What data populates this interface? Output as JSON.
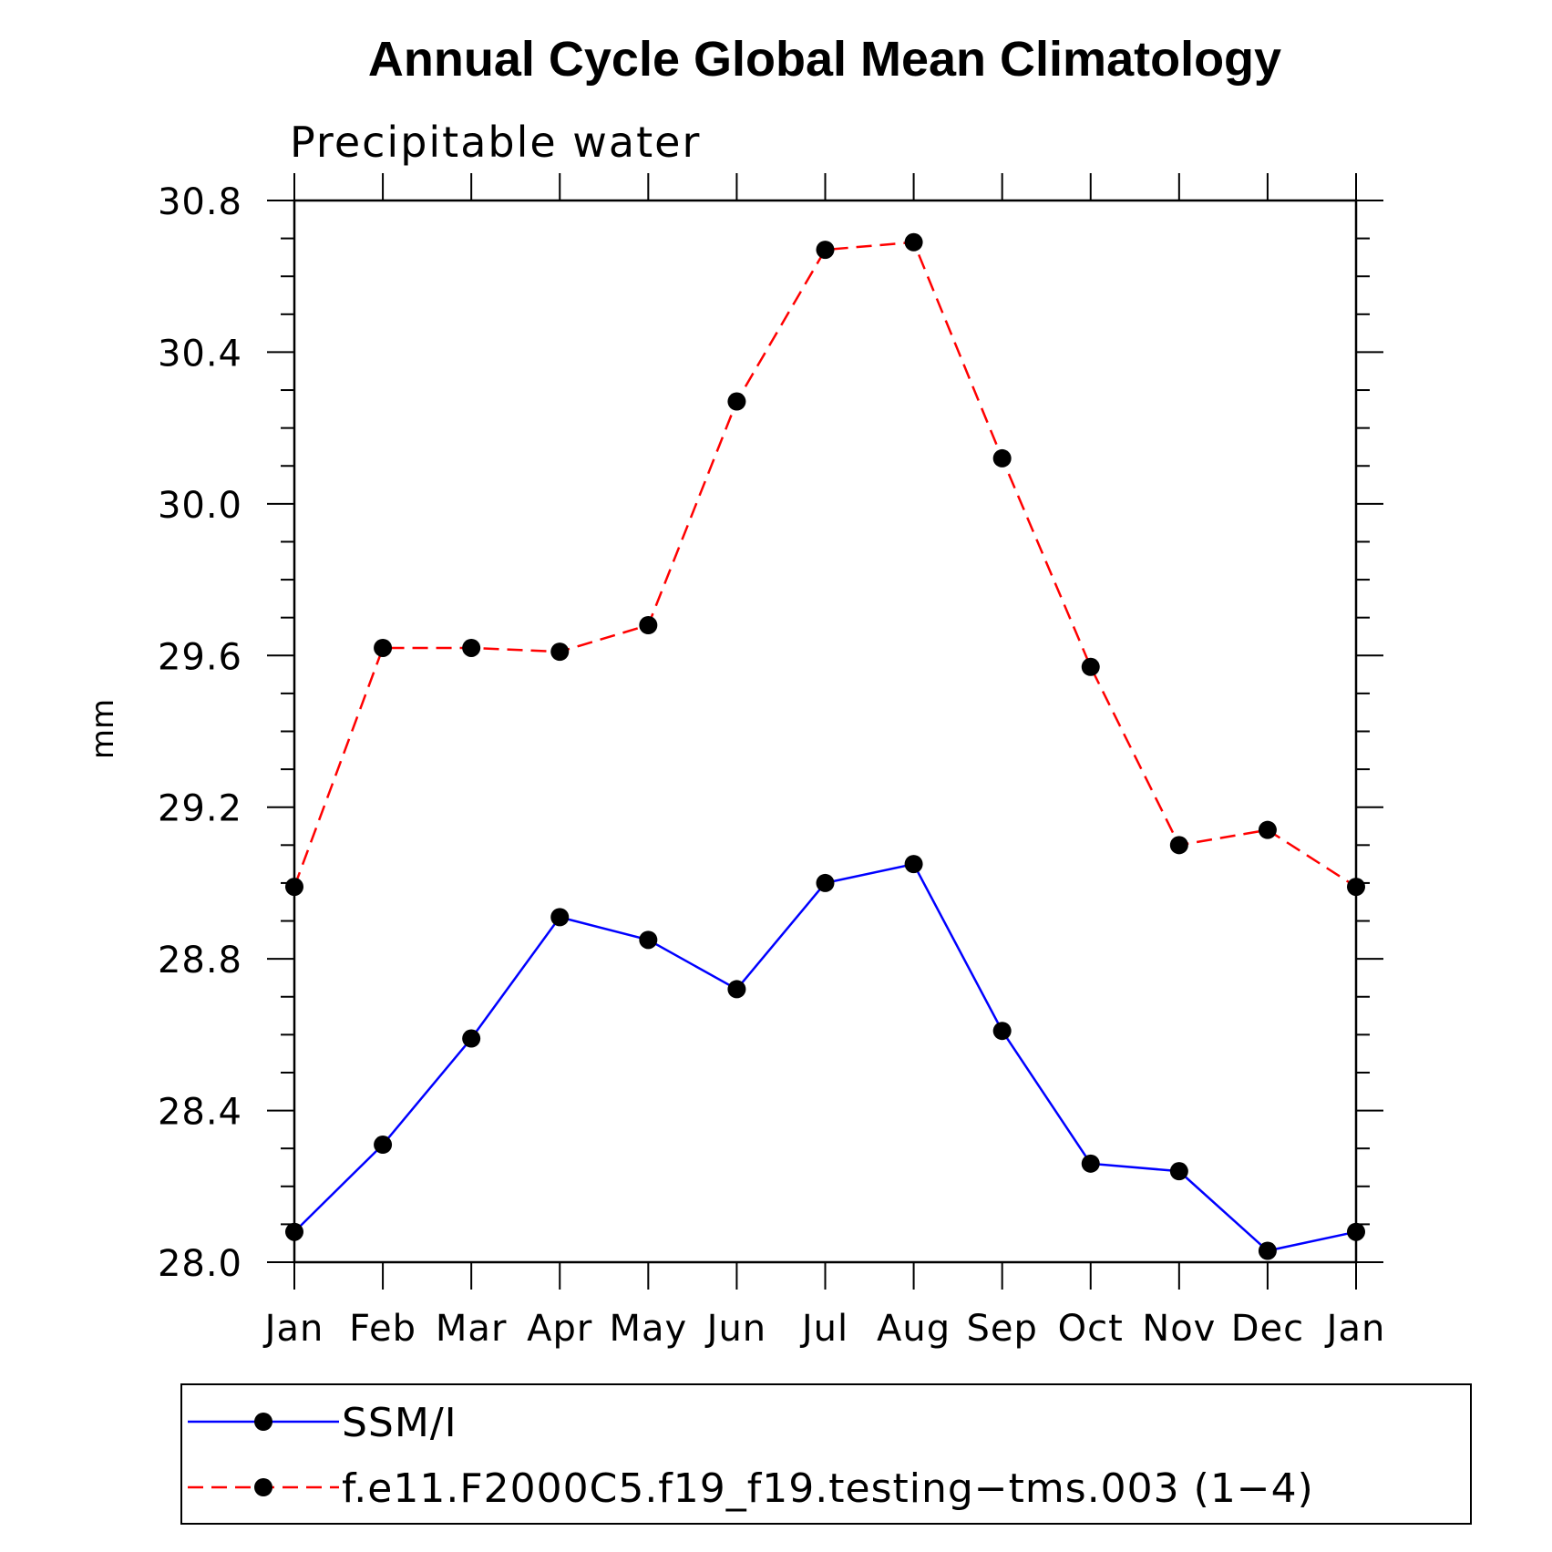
{
  "chart_data": {
    "type": "line",
    "title": "Annual Cycle Global Mean Climatology",
    "subtitle": "Precipitable water",
    "xlabel": "",
    "ylabel": "mm",
    "categories": [
      "Jan",
      "Feb",
      "Mar",
      "Apr",
      "May",
      "Jun",
      "Jul",
      "Aug",
      "Sep",
      "Oct",
      "Nov",
      "Dec",
      "Jan"
    ],
    "ylim": [
      28.0,
      30.8
    ],
    "yticks": [
      "28.0",
      "28.4",
      "28.8",
      "29.2",
      "29.6",
      "30.0",
      "30.4",
      "30.8"
    ],
    "grid": false,
    "legend_position": "bottom",
    "series": [
      {
        "name": "SSM/I",
        "color": "#0000ff",
        "line_style": "solid",
        "marker": "filled-circle",
        "values": [
          28.08,
          28.31,
          28.59,
          28.91,
          28.85,
          28.72,
          29.0,
          29.05,
          28.61,
          28.26,
          28.24,
          28.03,
          28.08
        ]
      },
      {
        "name": "f.e11.F2000C5.f19_f19.testing−tms.003 (1−4)",
        "color": "#ff0000",
        "line_style": "dashed",
        "marker": "filled-circle",
        "values": [
          28.99,
          29.62,
          29.62,
          29.61,
          29.68,
          30.27,
          30.67,
          30.69,
          30.12,
          29.57,
          29.1,
          29.14,
          28.99
        ]
      }
    ]
  }
}
